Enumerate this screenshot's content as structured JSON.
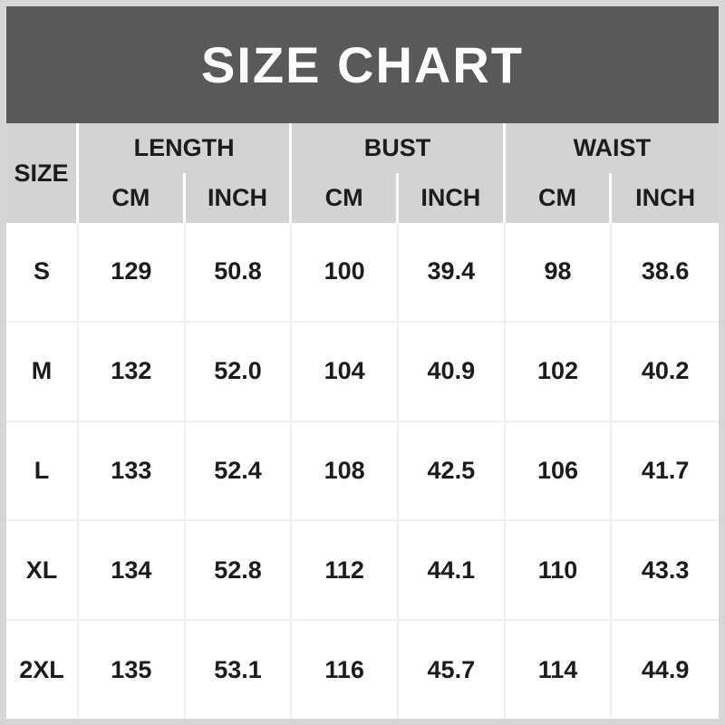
{
  "title": "SIZE CHART",
  "colors": {
    "banner_bg": "#595959",
    "banner_text": "#ffffff",
    "header_bg": "#d3d3d3",
    "frame_bg": "#d6d6d6",
    "row_bg": "#ffffff",
    "grid_line": "#efefef",
    "header_divider": "#ffffff",
    "text": "#1c1c1c"
  },
  "table": {
    "size_header": "SIZE",
    "group_labels": [
      "LENGTH",
      "BUST",
      "WAIST"
    ],
    "unit_headers": [
      "CM",
      "INCH",
      "CM",
      "INCH",
      "CM",
      "INCH"
    ],
    "rows": [
      {
        "size": "S",
        "values": [
          "129",
          "50.8",
          "100",
          "39.4",
          "98",
          "38.6"
        ]
      },
      {
        "size": "M",
        "values": [
          "132",
          "52.0",
          "104",
          "40.9",
          "102",
          "40.2"
        ]
      },
      {
        "size": "L",
        "values": [
          "133",
          "52.4",
          "108",
          "42.5",
          "106",
          "41.7"
        ]
      },
      {
        "size": "XL",
        "values": [
          "134",
          "52.8",
          "112",
          "44.1",
          "110",
          "43.3"
        ]
      },
      {
        "size": "2XL",
        "values": [
          "135",
          "53.1",
          "116",
          "45.7",
          "114",
          "44.9"
        ]
      }
    ]
  },
  "chart_data": {
    "type": "table",
    "title": "SIZE CHART",
    "column_groups": [
      "LENGTH",
      "BUST",
      "WAIST"
    ],
    "columns": [
      "SIZE",
      "LENGTH CM",
      "LENGTH INCH",
      "BUST CM",
      "BUST INCH",
      "WAIST CM",
      "WAIST INCH"
    ],
    "rows": [
      [
        "S",
        129,
        50.8,
        100,
        39.4,
        98,
        38.6
      ],
      [
        "M",
        132,
        52.0,
        104,
        40.9,
        102,
        40.2
      ],
      [
        "L",
        133,
        52.4,
        108,
        42.5,
        106,
        41.7
      ],
      [
        "XL",
        134,
        52.8,
        112,
        44.1,
        110,
        43.3
      ],
      [
        "2XL",
        135,
        53.1,
        116,
        45.7,
        114,
        44.9
      ]
    ]
  }
}
